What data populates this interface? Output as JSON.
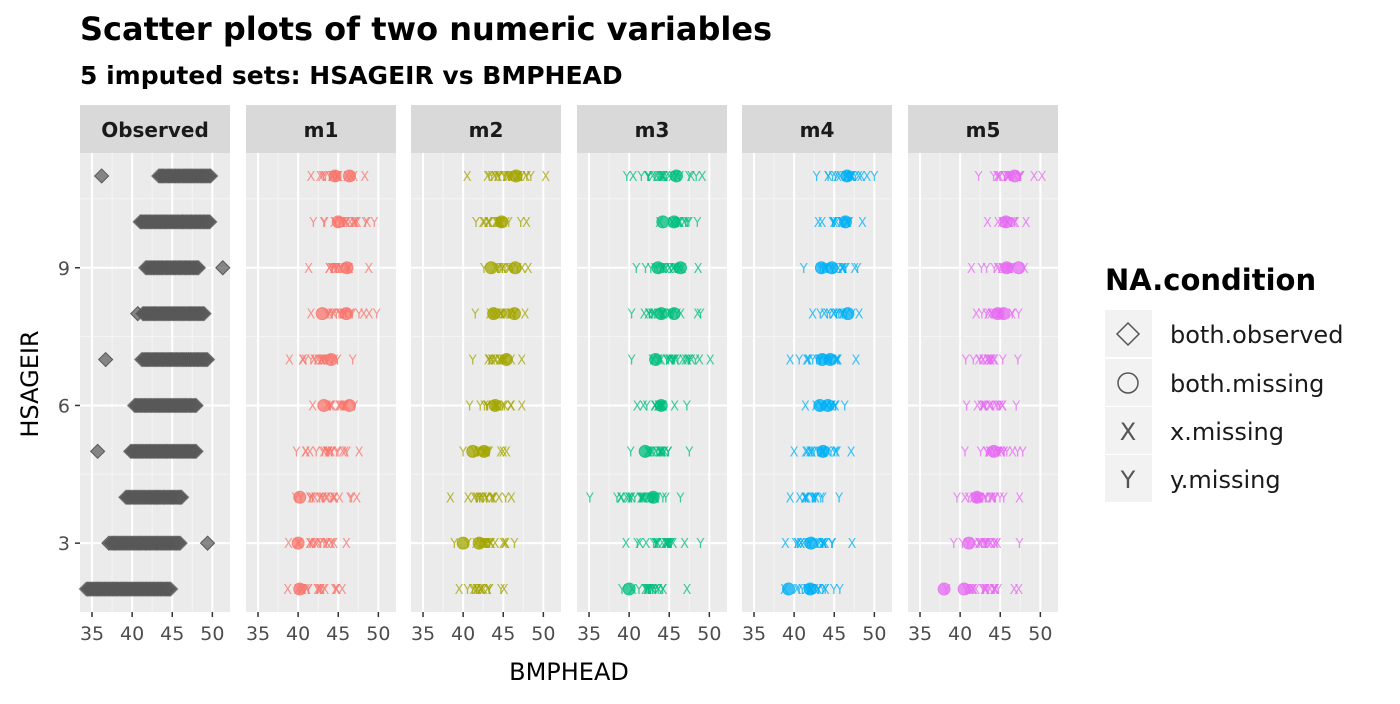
{
  "chart_data": {
    "type": "scatter",
    "title": "Scatter plots of two numeric variables",
    "subtitle": "5  imputed sets:  HSAGEIR vs BMPHEAD",
    "xlabel": "BMPHEAD",
    "ylabel": "HSAGEIR",
    "xlim": [
      33.5,
      52.2
    ],
    "ylim": [
      1.5,
      11.5
    ],
    "x_ticks": [
      35,
      40,
      45,
      50
    ],
    "y_ticks": [
      3,
      6,
      9
    ],
    "grid": true,
    "legend": {
      "title": "NA.condition",
      "position": "right",
      "entries": [
        {
          "label": "both.observed",
          "shape": "diamond"
        },
        {
          "label": "both.missing",
          "shape": "circle"
        },
        {
          "label": "x.missing",
          "shape": "X"
        },
        {
          "label": "y.missing",
          "shape": "Y"
        }
      ]
    },
    "panels": [
      {
        "name": "Observed",
        "color": "#595959",
        "ranges": [
          {
            "y": 2,
            "x": [
              34.3,
              44.8
            ]
          },
          {
            "y": 3,
            "x": [
              37.3,
              46.0
            ]
          },
          {
            "y": 4,
            "x": [
              39.2,
              46.2
            ]
          },
          {
            "y": 5,
            "x": [
              39.8,
              48.0
            ]
          },
          {
            "y": 6,
            "x": [
              40.3,
              48.0
            ]
          },
          {
            "y": 7,
            "x": [
              41.2,
              49.4
            ]
          },
          {
            "y": 8,
            "x": [
              41.3,
              49.0
            ]
          },
          {
            "y": 9,
            "x": [
              41.7,
              48.3
            ]
          },
          {
            "y": 10,
            "x": [
              41.0,
              49.7
            ]
          },
          {
            "y": 11,
            "x": [
              43.3,
              49.8
            ]
          }
        ],
        "outliers": [
          [
            36.2,
            11
          ],
          [
            51.3,
            9
          ],
          [
            40.7,
            8
          ],
          [
            36.7,
            7
          ],
          [
            35.7,
            5
          ],
          [
            37.1,
            3
          ],
          [
            49.4,
            3
          ]
        ]
      },
      {
        "name": "m1",
        "color": "#F8766D",
        "ranges": [
          {
            "y": 2,
            "x": [
              38.7,
              45.5
            ]
          },
          {
            "y": 3,
            "x": [
              38.8,
              46.0
            ]
          },
          {
            "y": 4,
            "x": [
              39.7,
              47.3
            ]
          },
          {
            "y": 5,
            "x": [
              39.8,
              47.6
            ]
          },
          {
            "y": 6,
            "x": [
              41.8,
              47.0
            ]
          },
          {
            "y": 7,
            "x": [
              38.9,
              46.8
            ]
          },
          {
            "y": 8,
            "x": [
              41.6,
              49.8
            ]
          },
          {
            "y": 9,
            "x": [
              41.3,
              48.8
            ]
          },
          {
            "y": 10,
            "x": [
              41.9,
              49.5
            ]
          },
          {
            "y": 11,
            "x": [
              41.6,
              48.3
            ]
          }
        ],
        "circles": [
          [
            40.2,
            2
          ],
          [
            40.0,
            3
          ],
          [
            40.2,
            4
          ],
          [
            43.2,
            6
          ],
          [
            46.4,
            6
          ],
          [
            44.1,
            7
          ],
          [
            43.0,
            8
          ],
          [
            46.0,
            8
          ],
          [
            46.1,
            9
          ],
          [
            45.0,
            10
          ],
          [
            44.6,
            11
          ],
          [
            46.4,
            11
          ]
        ]
      },
      {
        "name": "m2",
        "color": "#A3A500",
        "ranges": [
          {
            "y": 2,
            "x": [
              39.5,
              45.1
            ]
          },
          {
            "y": 3,
            "x": [
              38.9,
              46.4
            ]
          },
          {
            "y": 4,
            "x": [
              38.4,
              46.0
            ]
          },
          {
            "y": 5,
            "x": [
              40.0,
              45.4
            ]
          },
          {
            "y": 6,
            "x": [
              40.8,
              47.3
            ]
          },
          {
            "y": 7,
            "x": [
              41.2,
              47.3
            ]
          },
          {
            "y": 8,
            "x": [
              41.5,
              47.7
            ]
          },
          {
            "y": 9,
            "x": [
              42.6,
              48.1
            ]
          },
          {
            "y": 10,
            "x": [
              41.6,
              47.9
            ]
          },
          {
            "y": 11,
            "x": [
              40.5,
              50.3
            ]
          }
        ],
        "circles": [
          [
            40.0,
            3
          ],
          [
            42.0,
            3
          ],
          [
            41.2,
            5
          ],
          [
            42.6,
            5
          ],
          [
            44.0,
            6
          ],
          [
            45.4,
            7
          ],
          [
            43.8,
            8
          ],
          [
            46.4,
            8
          ],
          [
            43.5,
            9
          ],
          [
            46.5,
            9
          ],
          [
            44.8,
            10
          ],
          [
            46.6,
            11
          ]
        ]
      },
      {
        "name": "m3",
        "color": "#00BF7D",
        "ranges": [
          {
            "y": 2,
            "x": [
              39.1,
              47.2
            ]
          },
          {
            "y": 3,
            "x": [
              39.6,
              48.9
            ]
          },
          {
            "y": 4,
            "x": [
              35.1,
              46.4
            ]
          },
          {
            "y": 5,
            "x": [
              40.2,
              47.5
            ]
          },
          {
            "y": 6,
            "x": [
              41.0,
              47.2
            ]
          },
          {
            "y": 7,
            "x": [
              40.3,
              50.1
            ]
          },
          {
            "y": 8,
            "x": [
              40.3,
              48.9
            ]
          },
          {
            "y": 9,
            "x": [
              40.9,
              48.6
            ]
          },
          {
            "y": 10,
            "x": [
              43.8,
              48.5
            ]
          },
          {
            "y": 11,
            "x": [
              39.7,
              49.1
            ]
          }
        ],
        "circles": [
          [
            40.0,
            2
          ],
          [
            43.0,
            4
          ],
          [
            42.0,
            5
          ],
          [
            44.0,
            6
          ],
          [
            43.3,
            7
          ],
          [
            44.0,
            8
          ],
          [
            45.6,
            8
          ],
          [
            43.6,
            9
          ],
          [
            46.4,
            9
          ],
          [
            44.2,
            10
          ],
          [
            45.6,
            10
          ],
          [
            45.9,
            11
          ]
        ]
      },
      {
        "name": "m4",
        "color": "#00B0F6",
        "ranges": [
          {
            "y": 2,
            "x": [
              38.8,
              45.7
            ]
          },
          {
            "y": 3,
            "x": [
              38.9,
              47.2
            ]
          },
          {
            "y": 4,
            "x": [
              39.5,
              45.6
            ]
          },
          {
            "y": 5,
            "x": [
              40.0,
              47.1
            ]
          },
          {
            "y": 6,
            "x": [
              41.4,
              46.3
            ]
          },
          {
            "y": 7,
            "x": [
              39.5,
              47.7
            ]
          },
          {
            "y": 8,
            "x": [
              42.3,
              48.1
            ]
          },
          {
            "y": 9,
            "x": [
              41.2,
              47.9
            ]
          },
          {
            "y": 10,
            "x": [
              43.0,
              48.5
            ]
          },
          {
            "y": 11,
            "x": [
              42.8,
              50.0
            ]
          }
        ],
        "circles": [
          [
            39.3,
            2
          ],
          [
            42.0,
            2
          ],
          [
            42.1,
            3
          ],
          [
            43.6,
            5
          ],
          [
            43.2,
            6
          ],
          [
            44.2,
            6
          ],
          [
            43.5,
            7
          ],
          [
            44.5,
            7
          ],
          [
            46.7,
            8
          ],
          [
            43.4,
            9
          ],
          [
            44.7,
            9
          ],
          [
            46.4,
            10
          ],
          [
            46.6,
            11
          ]
        ]
      },
      {
        "name": "m5",
        "color": "#E76BF3",
        "ranges": [
          {
            "y": 2,
            "x": [
              38.3,
              47.3
            ]
          },
          {
            "y": 3,
            "x": [
              39.2,
              47.4
            ]
          },
          {
            "y": 4,
            "x": [
              39.6,
              47.4
            ]
          },
          {
            "y": 5,
            "x": [
              40.6,
              47.8
            ]
          },
          {
            "y": 6,
            "x": [
              40.8,
              47.0
            ]
          },
          {
            "y": 7,
            "x": [
              40.7,
              47.2
            ]
          },
          {
            "y": 8,
            "x": [
              42.0,
              47.3
            ]
          },
          {
            "y": 9,
            "x": [
              41.4,
              48.0
            ]
          },
          {
            "y": 10,
            "x": [
              43.4,
              48.2
            ]
          },
          {
            "y": 11,
            "x": [
              42.3,
              50.2
            ]
          }
        ],
        "circles": [
          [
            38.0,
            2
          ],
          [
            40.5,
            2
          ],
          [
            41.1,
            3
          ],
          [
            42.1,
            4
          ],
          [
            44.2,
            5
          ],
          [
            44.7,
            8
          ],
          [
            45.4,
            8
          ],
          [
            45.8,
            9
          ],
          [
            47.3,
            9
          ],
          [
            45.7,
            10
          ],
          [
            46.8,
            11
          ]
        ]
      }
    ]
  }
}
